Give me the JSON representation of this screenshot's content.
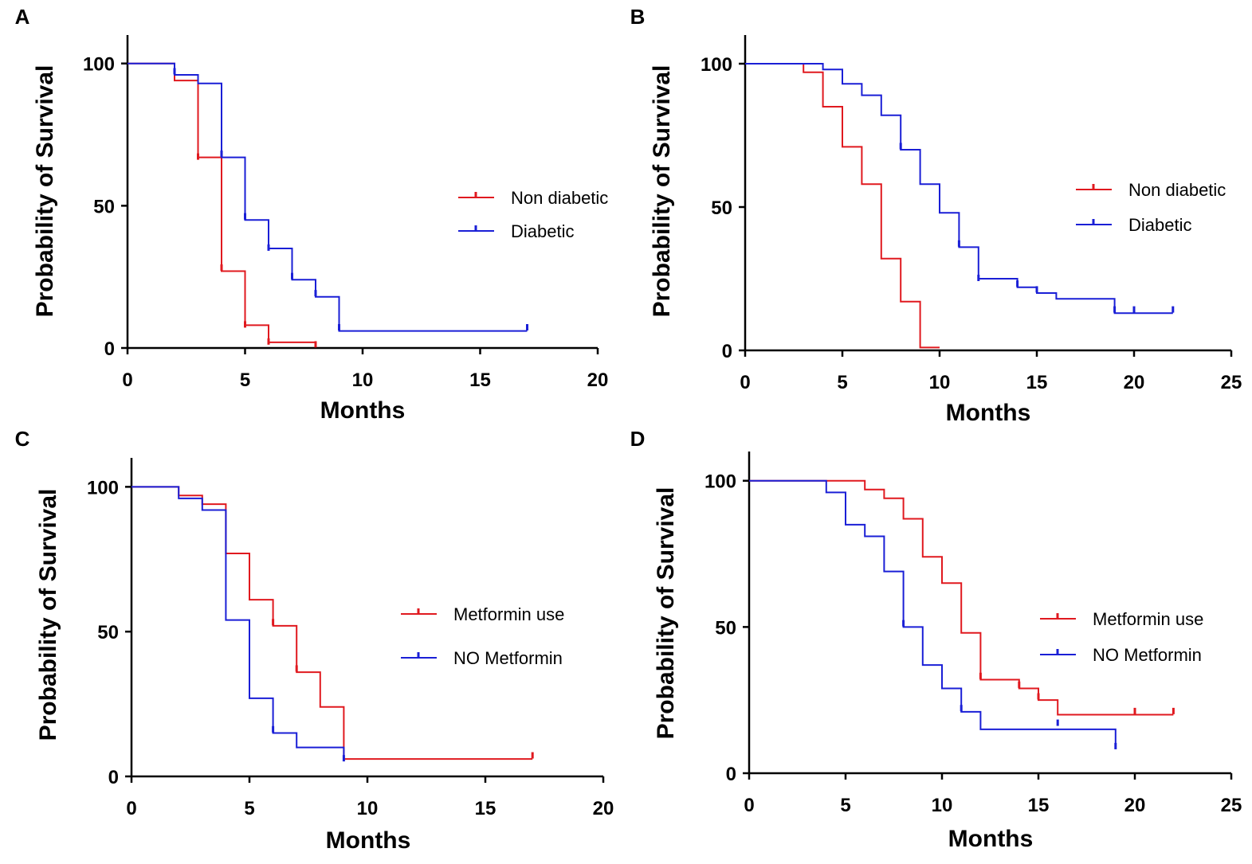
{
  "chart_data": [
    {
      "panel": "A",
      "type": "line",
      "subtype": "kaplan-meier",
      "xlabel": "Months",
      "ylabel": "Probability of Survival",
      "xlim": [
        0,
        20
      ],
      "ylim": [
        0,
        110
      ],
      "xticks": [
        0,
        5,
        10,
        15,
        20
      ],
      "yticks": [
        0,
        50,
        100
      ],
      "legend_position": "right",
      "series": [
        {
          "name": "Non diabetic",
          "color": "#e0191f",
          "steps": [
            [
              0,
              100
            ],
            [
              2,
              94
            ],
            [
              3,
              67
            ],
            [
              4,
              27
            ],
            [
              5,
              8
            ],
            [
              6,
              2
            ],
            [
              8,
              2
            ]
          ],
          "censored": [
            [
              3,
              67
            ],
            [
              4,
              28
            ],
            [
              5,
              8
            ],
            [
              6,
              2
            ],
            [
              8,
              1
            ]
          ]
        },
        {
          "name": "Diabetic",
          "color": "#1a1fd6",
          "steps": [
            [
              0,
              100
            ],
            [
              2,
              96
            ],
            [
              3,
              93
            ],
            [
              4,
              67
            ],
            [
              5,
              45
            ],
            [
              6,
              35
            ],
            [
              7,
              24
            ],
            [
              8,
              18
            ],
            [
              9,
              6
            ],
            [
              17,
              6
            ]
          ],
          "censored": [
            [
              2,
              97
            ],
            [
              4,
              68
            ],
            [
              5,
              46
            ],
            [
              6,
              35
            ],
            [
              7,
              25
            ],
            [
              8,
              19
            ],
            [
              9,
              7
            ],
            [
              17,
              7
            ]
          ]
        }
      ]
    },
    {
      "panel": "B",
      "type": "line",
      "subtype": "kaplan-meier",
      "xlabel": "Months",
      "ylabel": "Probability of Survival",
      "xlim": [
        0,
        25
      ],
      "ylim": [
        0,
        110
      ],
      "xticks": [
        0,
        5,
        10,
        15,
        20,
        25
      ],
      "yticks": [
        0,
        50,
        100
      ],
      "legend_position": "right",
      "series": [
        {
          "name": "Non diabetic",
          "color": "#e0191f",
          "steps": [
            [
              0,
              100
            ],
            [
              3,
              97
            ],
            [
              4,
              85
            ],
            [
              5,
              71
            ],
            [
              6,
              58
            ],
            [
              7,
              32
            ],
            [
              8,
              17
            ],
            [
              9,
              1
            ],
            [
              10,
              1
            ]
          ],
          "censored": []
        },
        {
          "name": "Diabetic",
          "color": "#1a1fd6",
          "steps": [
            [
              0,
              100
            ],
            [
              3,
              100
            ],
            [
              4,
              98
            ],
            [
              5,
              93
            ],
            [
              6,
              89
            ],
            [
              7,
              82
            ],
            [
              8,
              70
            ],
            [
              9,
              58
            ],
            [
              10,
              48
            ],
            [
              11,
              36
            ],
            [
              12,
              25
            ],
            [
              14,
              22
            ],
            [
              15,
              20
            ],
            [
              16,
              18
            ],
            [
              19,
              13
            ],
            [
              22,
              13
            ]
          ],
          "censored": [
            [
              8,
              71
            ],
            [
              11,
              37
            ],
            [
              12,
              25
            ],
            [
              14,
              23
            ],
            [
              15,
              21
            ],
            [
              19,
              14
            ],
            [
              20,
              14
            ],
            [
              22,
              14
            ]
          ]
        }
      ]
    },
    {
      "panel": "C",
      "type": "line",
      "subtype": "kaplan-meier",
      "xlabel": "Months",
      "ylabel": "Probability of Survival",
      "xlim": [
        0,
        20
      ],
      "ylim": [
        0,
        110
      ],
      "xticks": [
        0,
        5,
        10,
        15,
        20
      ],
      "yticks": [
        0,
        50,
        100
      ],
      "legend_position": "right",
      "series": [
        {
          "name": "Metformin use",
          "color": "#e0191f",
          "steps": [
            [
              0,
              100
            ],
            [
              2,
              97
            ],
            [
              3,
              94
            ],
            [
              4,
              77
            ],
            [
              5,
              61
            ],
            [
              6,
              52
            ],
            [
              7,
              36
            ],
            [
              8,
              24
            ],
            [
              9,
              6
            ],
            [
              17,
              6
            ]
          ],
          "censored": [
            [
              6,
              53
            ],
            [
              7,
              37
            ],
            [
              17,
              7
            ]
          ]
        },
        {
          "name": "NO Metformin",
          "color": "#1a1fd6",
          "steps": [
            [
              0,
              100
            ],
            [
              2,
              96
            ],
            [
              3,
              92
            ],
            [
              4,
              54
            ],
            [
              5,
              27
            ],
            [
              6,
              15
            ],
            [
              7,
              10
            ],
            [
              9,
              6
            ]
          ],
          "censored": [
            [
              6,
              16
            ],
            [
              9,
              6
            ]
          ]
        }
      ]
    },
    {
      "panel": "D",
      "type": "line",
      "subtype": "kaplan-meier",
      "xlabel": "Months",
      "ylabel": "Probability of Survival",
      "xlim": [
        0,
        25
      ],
      "ylim": [
        0,
        110
      ],
      "xticks": [
        0,
        5,
        10,
        15,
        20,
        25
      ],
      "yticks": [
        0,
        50,
        100
      ],
      "legend_position": "right",
      "series": [
        {
          "name": "Metformin use",
          "color": "#e0191f",
          "steps": [
            [
              0,
              100
            ],
            [
              6,
              97
            ],
            [
              7,
              94
            ],
            [
              8,
              87
            ],
            [
              9,
              74
            ],
            [
              10,
              65
            ],
            [
              11,
              48
            ],
            [
              12,
              32
            ],
            [
              14,
              29
            ],
            [
              15,
              25
            ],
            [
              16,
              20
            ],
            [
              22,
              20
            ]
          ],
          "censored": [
            [
              12,
              33
            ],
            [
              14,
              30
            ],
            [
              15,
              26
            ],
            [
              20,
              21
            ],
            [
              22,
              21
            ]
          ]
        },
        {
          "name": "NO Metformin",
          "color": "#1a1fd6",
          "steps": [
            [
              0,
              100
            ],
            [
              4,
              96
            ],
            [
              5,
              85
            ],
            [
              6,
              81
            ],
            [
              7,
              69
            ],
            [
              8,
              50
            ],
            [
              9,
              37
            ],
            [
              10,
              29
            ],
            [
              11,
              21
            ],
            [
              12,
              15
            ],
            [
              19,
              9
            ]
          ],
          "censored": [
            [
              8,
              51
            ],
            [
              11,
              22
            ],
            [
              16,
              17
            ],
            [
              19,
              9
            ]
          ]
        }
      ]
    }
  ]
}
